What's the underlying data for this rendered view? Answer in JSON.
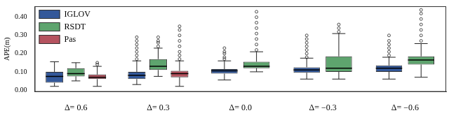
{
  "chart_data": {
    "type": "boxplot",
    "y_label": "APE(m)",
    "categories": [
      "Δ= 0.6",
      "Δ= 0.3",
      "Δ= 0.0",
      "Δ= −0.3",
      "Δ= −0.6"
    ],
    "ylim": [
      -0.01,
      0.46
    ],
    "yticks": [
      {
        "value": 0,
        "label": "0.00"
      },
      {
        "value": 0.1,
        "label": "0.10"
      },
      {
        "value": 0.2,
        "label": "0.20"
      },
      {
        "value": 0.3,
        "label": "0.30"
      },
      {
        "value": 0.4,
        "label": "0.40"
      }
    ],
    "grid": false,
    "legend": "upper left",
    "marker": "circle",
    "series": [
      {
        "name": "IGLOV",
        "color": "#33589a",
        "values": [
          {
            "min": 0.02,
            "q1": 0.04,
            "median": 0.075,
            "q3": 0.1,
            "max": 0.155,
            "outliers": []
          },
          {
            "min": 0.03,
            "q1": 0.06,
            "median": 0.08,
            "q3": 0.1,
            "max": 0.16,
            "outliers": [
              0.17,
              0.19,
              0.21,
              0.23,
              0.25,
              0.27,
              0.29
            ]
          },
          {
            "min": 0.055,
            "q1": 0.09,
            "median": 0.105,
            "q3": 0.115,
            "max": 0.16,
            "outliers": [
              0.17,
              0.18,
              0.2,
              0.21,
              0.23
            ]
          },
          {
            "min": 0.06,
            "q1": 0.095,
            "median": 0.11,
            "q3": 0.125,
            "max": 0.175,
            "outliers": [
              0.18,
              0.2,
              0.22,
              0.24,
              0.26,
              0.28,
              0.3
            ]
          },
          {
            "min": 0.06,
            "q1": 0.1,
            "median": 0.12,
            "q3": 0.135,
            "max": 0.18,
            "outliers": [
              0.19,
              0.21,
              0.23,
              0.25,
              0.27,
              0.3
            ]
          }
        ]
      },
      {
        "name": "RSDT",
        "color": "#5ea46e",
        "values": [
          {
            "min": 0.05,
            "q1": 0.075,
            "median": 0.09,
            "q3": 0.12,
            "max": 0.15,
            "outliers": []
          },
          {
            "min": 0.075,
            "q1": 0.11,
            "median": 0.13,
            "q3": 0.17,
            "max": 0.23,
            "outliers": [
              0.24,
              0.26,
              0.27,
              0.29
            ]
          },
          {
            "min": 0.1,
            "q1": 0.12,
            "median": 0.13,
            "q3": 0.155,
            "max": 0.21,
            "outliers": [
              0.22,
              0.25,
              0.28,
              0.31,
              0.34,
              0.37,
              0.4,
              0.43
            ]
          },
          {
            "min": 0.06,
            "q1": 0.1,
            "median": 0.12,
            "q3": 0.185,
            "max": 0.31,
            "outliers": [
              0.32,
              0.34,
              0.36
            ]
          },
          {
            "min": 0.07,
            "q1": 0.14,
            "median": 0.165,
            "q3": 0.185,
            "max": 0.255,
            "outliers": [
              0.27,
              0.3,
              0.33,
              0.36,
              0.39,
              0.42,
              0.44
            ]
          }
        ]
      },
      {
        "name": "Pas",
        "color": "#b5535f",
        "values": [
          {
            "min": 0.02,
            "q1": 0.06,
            "median": 0.07,
            "q3": 0.085,
            "max": 0.13,
            "outliers": [
              0.14,
              0.15
            ]
          },
          {
            "min": 0.02,
            "q1": 0.07,
            "median": 0.09,
            "q3": 0.105,
            "max": 0.16,
            "outliers": [
              0.17,
              0.19,
              0.21,
              0.24,
              0.27,
              0.3,
              0.33,
              0.35
            ]
          },
          null,
          null,
          null
        ]
      }
    ]
  }
}
